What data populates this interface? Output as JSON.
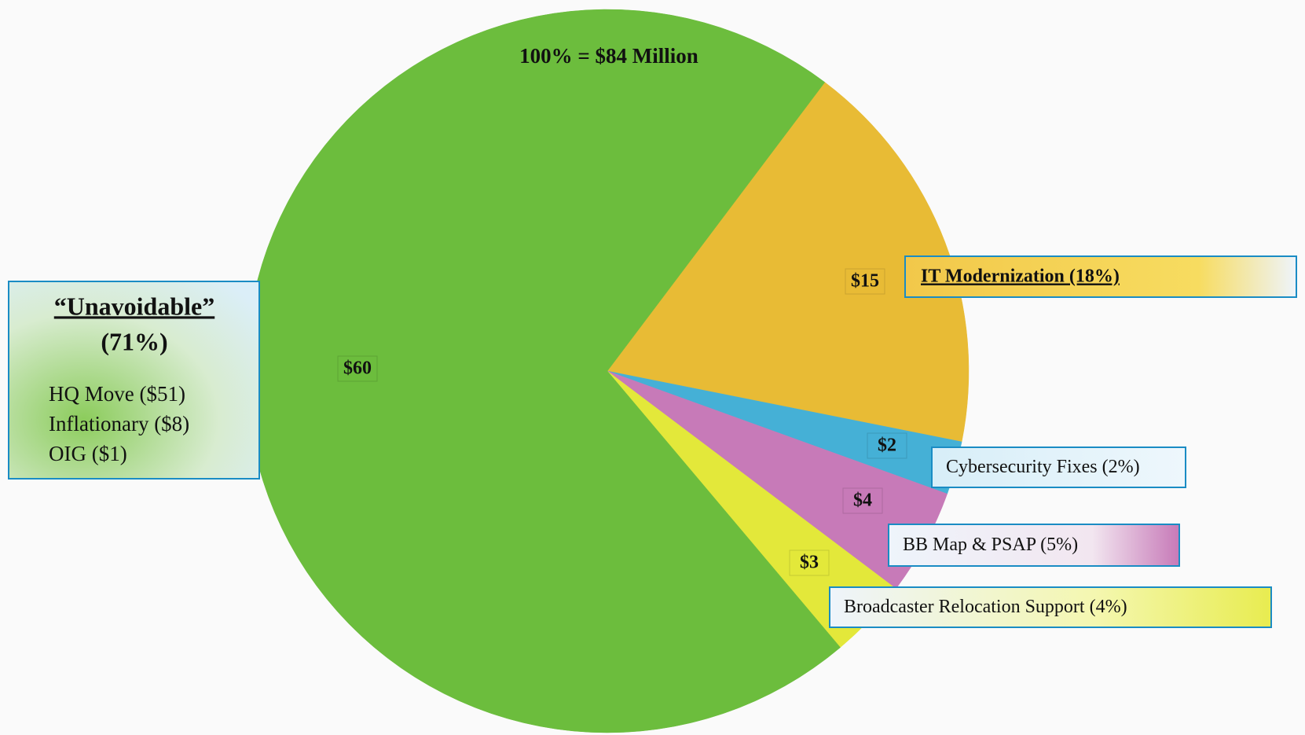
{
  "chart_data": {
    "type": "pie",
    "title": "100% = $84 Million",
    "categories": [
      "IT Modernization (18%)",
      "Cybersecurity Fixes (2%)",
      "BB Map & PSAP (5%)",
      "Broadcaster Relocation Support (4%)",
      "“Unavoidable”"
    ],
    "values": [
      15,
      2,
      4,
      3,
      60
    ],
    "value_labels": [
      "$15",
      "$2",
      "$4",
      "$3",
      "$60"
    ],
    "colors": [
      "#e8bb35",
      "#45b0d6",
      "#c77ab8",
      "#e3e83a",
      "#6cbd3d"
    ],
    "unavoidable_share": "(71%)",
    "unavoidable_items": [
      "HQ Move ($51)",
      "Inflationary ($8)",
      "OIG ($1)"
    ]
  }
}
